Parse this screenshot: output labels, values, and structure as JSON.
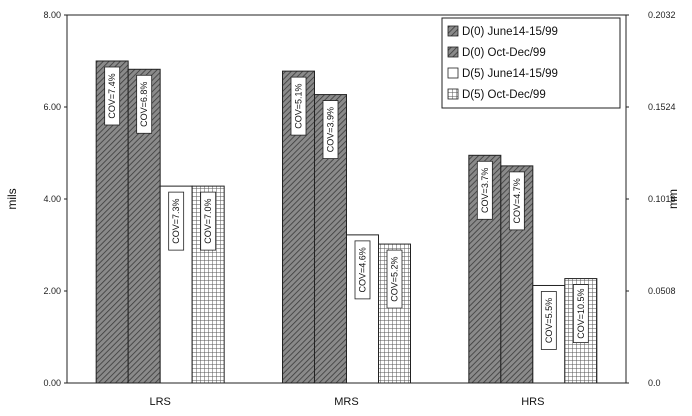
{
  "chart_data": {
    "type": "bar",
    "categories": [
      "LRS",
      "MRS",
      "HRS"
    ],
    "ylabel": "mils",
    "ylabel_right": "mm",
    "ylim": [
      0,
      8
    ],
    "y_ticks": [
      "0.00",
      "2.00",
      "4.00",
      "6.00",
      "8.00"
    ],
    "y_right_ticks": [
      "0.0",
      "0.0508",
      "0.1016",
      "0.1524",
      "0.2032"
    ],
    "grid": false,
    "legend_position": "top-right",
    "series": [
      {
        "name": "D(0) June14-15/99",
        "pattern": "diag-dense",
        "values": [
          7.0,
          6.78,
          4.95
        ],
        "cov": [
          "COV=7.4%",
          "COV=5.1%",
          "COV=3.7%"
        ]
      },
      {
        "name": "D(0) Oct-Dec/99",
        "pattern": "diag-dense",
        "values": [
          6.82,
          6.27,
          4.72
        ],
        "cov": [
          "COV=6.8%",
          "COV=3.9%",
          "COV=4.7%"
        ]
      },
      {
        "name": "D(5) June14-15/99",
        "pattern": "white",
        "values": [
          4.28,
          3.22,
          2.12
        ],
        "cov": [
          "COV=7.3%",
          "COV=4.6%",
          "COV=5.5%"
        ]
      },
      {
        "name": "D(5) Oct-Dec/99",
        "pattern": "grid",
        "values": [
          4.28,
          3.02,
          2.27
        ],
        "cov": [
          "COV=7.0%",
          "COV=5.2%",
          "COV=10.5%"
        ]
      }
    ]
  }
}
